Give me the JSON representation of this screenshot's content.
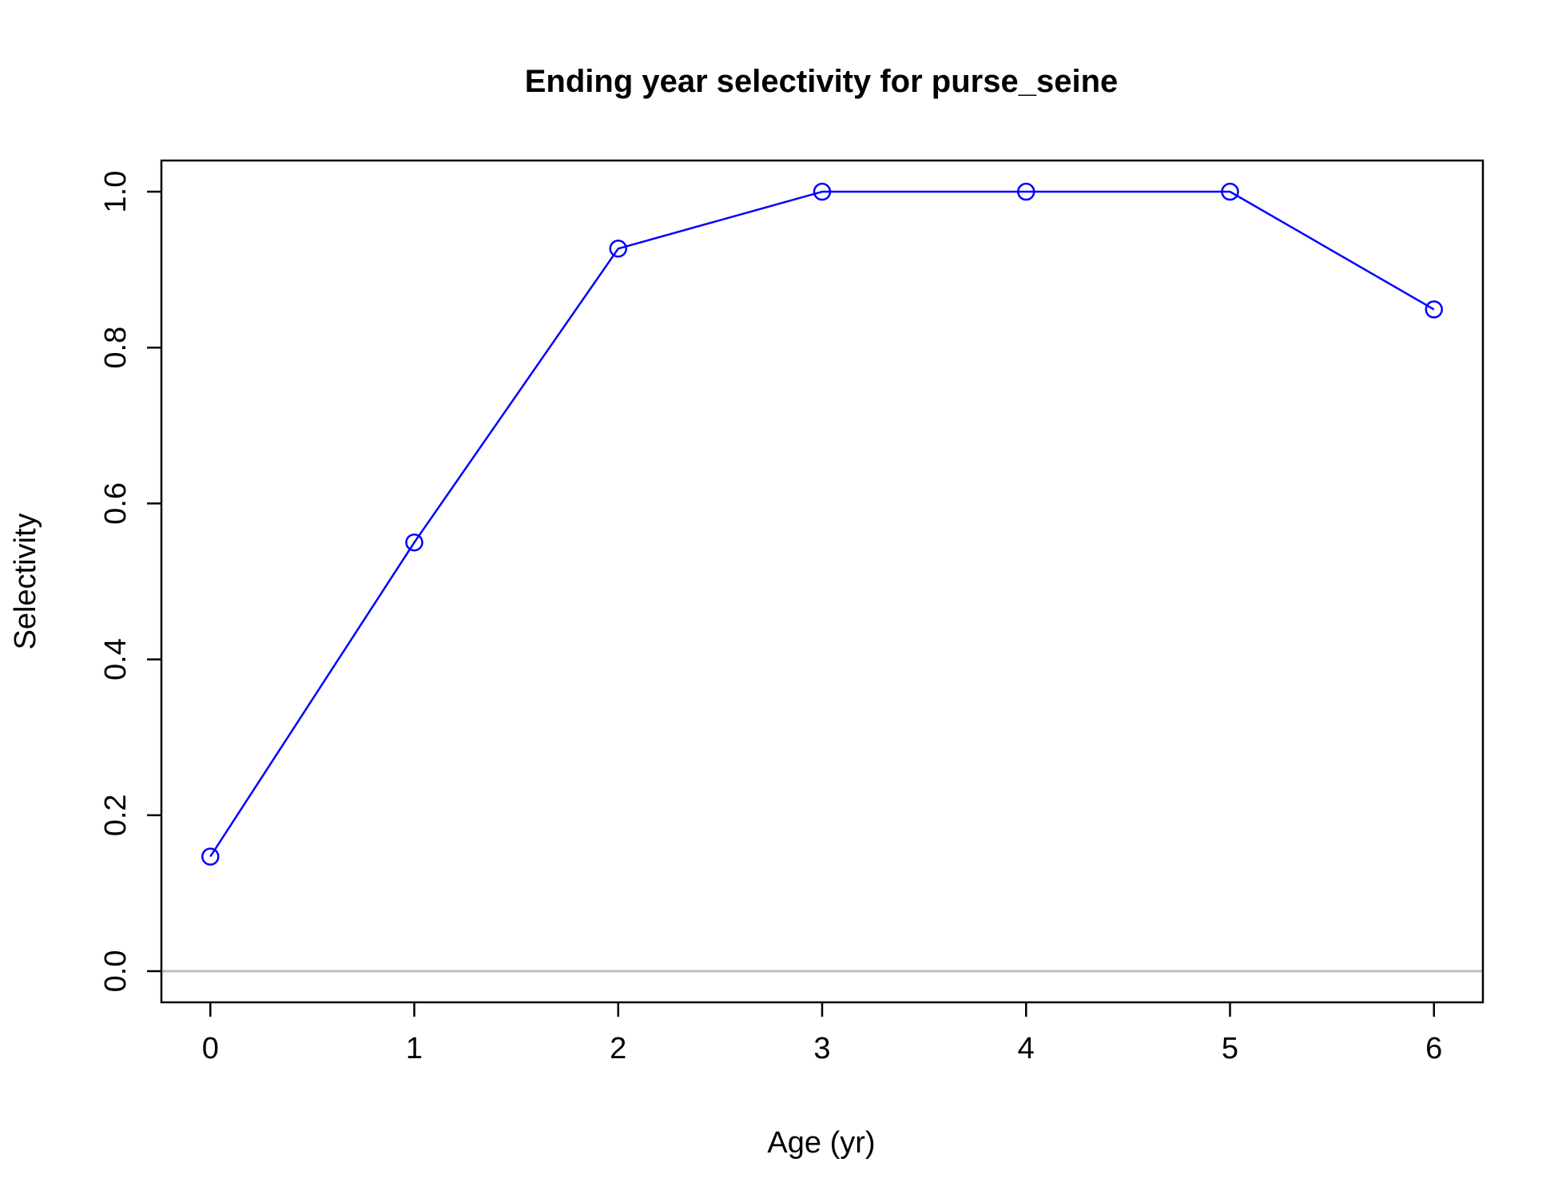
{
  "chart_data": {
    "type": "line",
    "title": "Ending year selectivity for purse_seine",
    "xlabel": "Age (yr)",
    "ylabel": "Selectivity",
    "x": [
      0,
      1,
      2,
      3,
      4,
      5,
      6
    ],
    "series": [
      {
        "values": [
          0.147,
          0.55,
          0.927,
          1.0,
          1.0,
          1.0,
          0.849
        ],
        "color": "#0000ff",
        "marker": "open-circle"
      }
    ],
    "xlim": [
      -0.24,
      6.24
    ],
    "ylim": [
      -0.04,
      1.04
    ],
    "x_ticks": [
      "0",
      "1",
      "2",
      "3",
      "4",
      "5",
      "6"
    ],
    "y_ticks": [
      "0.0",
      "0.2",
      "0.4",
      "0.6",
      "0.8",
      "1.0"
    ],
    "reference_line": {
      "y": 0,
      "color": "#bebebe"
    },
    "grid": false,
    "legend": "none"
  }
}
